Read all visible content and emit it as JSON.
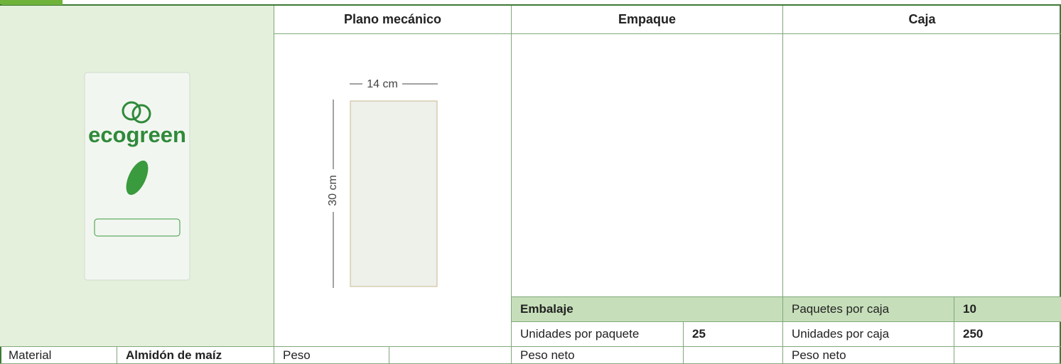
{
  "header": {
    "columns": [
      "Plano mecánico",
      "Empaque",
      "Caja"
    ]
  },
  "product": {
    "brand": "ecogreen"
  },
  "drawing": {
    "width": "14 cm",
    "height": "30 cm"
  },
  "empaque": {
    "section": "Embalaje",
    "units_label": "Unidades por paquete",
    "units": 25
  },
  "caja": {
    "packs_label": "Paquetes por caja",
    "packs": 10,
    "units_label": "Unidades por caja",
    "units": 250
  },
  "footer": {
    "material_label": "Material",
    "material": "Almidón de maíz",
    "peso_label": "Peso",
    "empaque_peso_label": "Peso neto",
    "caja_peso_label": "Peso neto"
  }
}
